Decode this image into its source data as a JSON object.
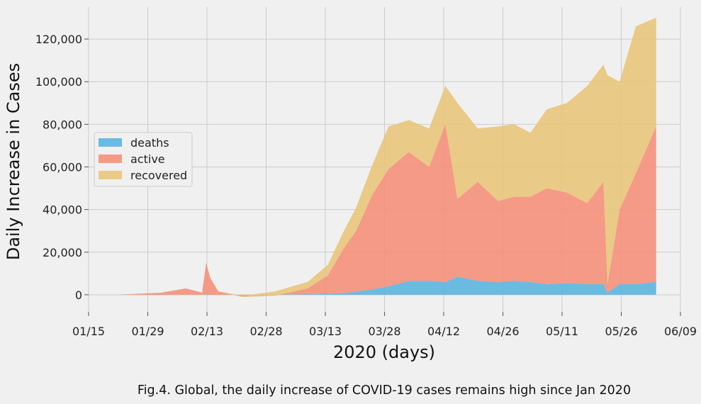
{
  "figure": {
    "caption": "Fig.4. Global, the daily increase of COVID-19 cases remains high since Jan 2020"
  },
  "chart_data": {
    "type": "area",
    "stacked": true,
    "xlabel": "2020 (days)",
    "ylabel": "Daily Increase in Cases",
    "xlim": [
      "2020-01-15",
      "2020-06-09"
    ],
    "ylim": [
      -8000,
      135000
    ],
    "x_ticks": [
      "01/15",
      "01/29",
      "02/13",
      "02/28",
      "03/13",
      "03/28",
      "04/12",
      "04/26",
      "05/11",
      "05/26",
      "06/09"
    ],
    "y_ticks": [
      0,
      20000,
      40000,
      60000,
      80000,
      100000,
      120000
    ],
    "y_tick_labels": [
      "0",
      "20,000",
      "40,000",
      "60,000",
      "80,000",
      "100,000",
      "120,000"
    ],
    "grid": true,
    "legend_position": "center-left",
    "colors": {
      "deaths": "#5cb4e0",
      "active": "#f5907a",
      "recovered": "#e8c57a"
    },
    "dates": [
      "2020-01-22",
      "2020-02-02",
      "2020-02-08",
      "2020-02-12",
      "2020-02-13",
      "2020-02-14",
      "2020-02-16",
      "2020-02-22",
      "2020-03-01",
      "2020-03-09",
      "2020-03-14",
      "2020-03-18",
      "2020-03-21",
      "2020-03-25",
      "2020-03-29",
      "2020-04-03",
      "2020-04-08",
      "2020-04-12",
      "2020-04-15",
      "2020-04-20",
      "2020-04-25",
      "2020-04-29",
      "2020-05-03",
      "2020-05-07",
      "2020-05-12",
      "2020-05-17",
      "2020-05-21",
      "2020-05-22",
      "2020-05-25",
      "2020-05-29",
      "2020-06-03"
    ],
    "series": [
      {
        "name": "deaths",
        "values": [
          0,
          0,
          0,
          0,
          200,
          100,
          0,
          0,
          100,
          300,
          500,
          800,
          1500,
          2500,
          4000,
          6500,
          6500,
          6000,
          8500,
          6500,
          6000,
          6500,
          6000,
          5000,
          5500,
          5000,
          5000,
          1000,
          5000,
          5000,
          6000
        ]
      },
      {
        "name": "active",
        "values": [
          0,
          1000,
          3000,
          1000,
          14800,
          7900,
          1500,
          -1000,
          -500,
          2700,
          8500,
          21200,
          28500,
          44500,
          55000,
          60500,
          53500,
          74000,
          36500,
          46500,
          38000,
          39500,
          40000,
          45000,
          42500,
          38000,
          48000,
          4000,
          35000,
          52000,
          73000
        ]
      },
      {
        "name": "recovered",
        "values": [
          0,
          0,
          0,
          0,
          0,
          0,
          200,
          500,
          2000,
          3000,
          5000,
          8000,
          11000,
          14000,
          20000,
          15000,
          18000,
          18000,
          45000,
          25000,
          35000,
          34000,
          30000,
          37000,
          42000,
          55000,
          55000,
          98000,
          60000,
          69000,
          51000
        ]
      }
    ]
  }
}
